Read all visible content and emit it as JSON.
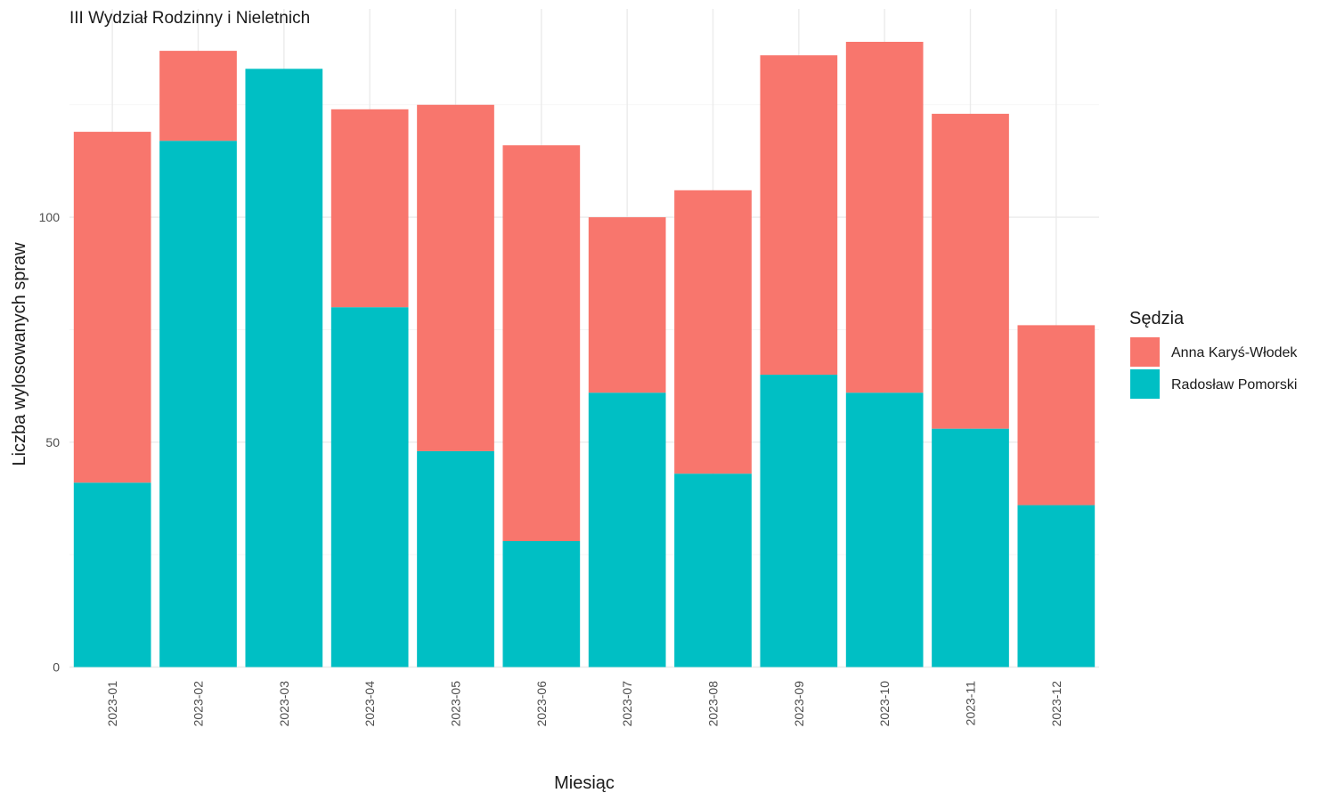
{
  "chart_data": {
    "type": "bar",
    "stacked": true,
    "title": "III Wydział Rodzinny i Nieletnich",
    "xlabel": "Miesiąc",
    "ylabel": "Liczba wylosowanych spraw",
    "categories": [
      "2023-01",
      "2023-02",
      "2023-03",
      "2023-04",
      "2023-05",
      "2023-06",
      "2023-07",
      "2023-08",
      "2023-09",
      "2023-10",
      "2023-11",
      "2023-12"
    ],
    "series": [
      {
        "name": "Radosław Pomorski",
        "color": "#00BFC4",
        "values": [
          41,
          117,
          133,
          80,
          48,
          28,
          61,
          43,
          65,
          61,
          53,
          36
        ]
      },
      {
        "name": "Anna Karyś-Włodek",
        "color": "#F8766D",
        "values": [
          78,
          20,
          0,
          44,
          77,
          88,
          39,
          63,
          71,
          78,
          70,
          40
        ]
      }
    ],
    "ylim": [
      0,
      140
    ],
    "yticks": [
      0,
      50,
      100
    ],
    "legend": {
      "title": "Sędzia",
      "placement": "right",
      "order": [
        "Anna Karyś-Włodek",
        "Radosław Pomorski"
      ]
    },
    "grid": true
  }
}
